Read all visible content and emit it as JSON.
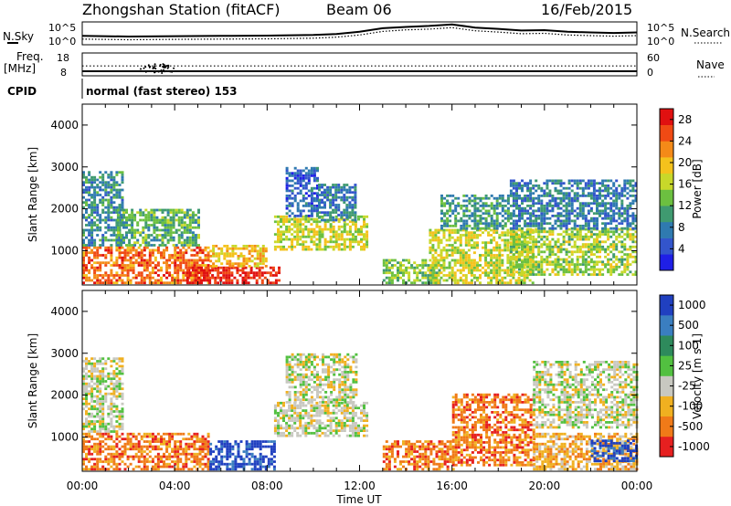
{
  "header": {
    "station": "Zhongshan Station (fitACF)",
    "beam": "Beam 06",
    "date": "16/Feb/2015"
  },
  "noise_panel": {
    "left_label": "N.Sky",
    "right_label": "N.Search",
    "left_ticks": [
      "10^5",
      "10^0"
    ],
    "right_ticks": [
      "10^5",
      "10^0"
    ],
    "series": [
      {
        "style": "solid",
        "name": "N.Sky",
        "x": [
          0,
          2,
          4,
          6,
          8,
          10,
          11,
          12,
          13,
          14,
          15,
          16,
          17,
          18,
          19,
          20,
          21,
          22,
          23,
          24
        ],
        "y": [
          2.2,
          2.0,
          2.1,
          2.2,
          2.3,
          2.5,
          2.8,
          3.5,
          4.6,
          5.0,
          5.3,
          5.8,
          4.8,
          4.4,
          3.9,
          4.0,
          3.5,
          3.3,
          3.1,
          3.3
        ]
      },
      {
        "style": "dotted",
        "name": "N.Search",
        "x": [
          0,
          2,
          4,
          6,
          8,
          10,
          11,
          12,
          13,
          14,
          15,
          16,
          17,
          18,
          19,
          20,
          21,
          22,
          23,
          24
        ],
        "y": [
          1.2,
          1.0,
          1.1,
          1.2,
          1.3,
          1.5,
          1.8,
          2.5,
          3.6,
          4.1,
          4.3,
          4.8,
          3.8,
          3.4,
          2.9,
          3.0,
          2.5,
          2.3,
          2.1,
          2.3
        ]
      }
    ]
  },
  "freq_panel": {
    "left_label": "Freq.",
    "left_unit": "[MHz]",
    "right_label": "Nave",
    "left_ticks": [
      "18",
      "8"
    ],
    "right_ticks": [
      "60",
      "0"
    ],
    "freq_value": 10,
    "nave_value": 26
  },
  "cpid": {
    "label": "CPID",
    "text": "normal (fast stereo) 153"
  },
  "chart_data": [
    {
      "type": "heatmap",
      "parameter": "Power",
      "ylabel": "Slant Range [km]",
      "xlabel": "Time UT",
      "xlim": [
        0,
        24
      ],
      "ylim": [
        180,
        4500
      ],
      "x_ticks": [
        "00:00",
        "04:00",
        "08:00",
        "12:00",
        "16:00",
        "20:00",
        "00:00"
      ],
      "y_ticks": [
        1000,
        2000,
        3000,
        4000
      ],
      "colorbar": {
        "label": "Power [dB]",
        "ticks": [
          4,
          8,
          12,
          16,
          20,
          24,
          28
        ],
        "range": [
          0,
          30
        ],
        "colors": [
          "#1f1fe6",
          "#3355cc",
          "#2f7ab0",
          "#3f9a70",
          "#6cc040",
          "#c8d82a",
          "#f4c21c",
          "#f48a18",
          "#f04a14",
          "#e01010"
        ]
      },
      "regions": [
        {
          "t0": 0.0,
          "t1": 5.5,
          "r0": 200,
          "r1": 1100,
          "level": 24
        },
        {
          "t0": 0.0,
          "t1": 1.8,
          "r0": 1100,
          "r1": 2900,
          "level": 9
        },
        {
          "t0": 1.5,
          "t1": 5.0,
          "r0": 1100,
          "r1": 2000,
          "level": 12
        },
        {
          "t0": 4.5,
          "t1": 8.5,
          "r0": 200,
          "r1": 600,
          "level": 28
        },
        {
          "t0": 5.5,
          "t1": 8.0,
          "r0": 600,
          "r1": 1100,
          "level": 20
        },
        {
          "t0": 8.3,
          "t1": 12.3,
          "r0": 1000,
          "r1": 1800,
          "level": 17
        },
        {
          "t0": 8.8,
          "t1": 10.2,
          "r0": 1800,
          "r1": 3000,
          "level": 6
        },
        {
          "t0": 10.2,
          "t1": 11.8,
          "r0": 1700,
          "r1": 2600,
          "level": 8
        },
        {
          "t0": 13.0,
          "t1": 15.5,
          "r0": 200,
          "r1": 800,
          "level": 14
        },
        {
          "t0": 15.0,
          "t1": 19.5,
          "r0": 200,
          "r1": 1500,
          "level": 17
        },
        {
          "t0": 15.5,
          "t1": 18.5,
          "r0": 1500,
          "r1": 2300,
          "level": 10
        },
        {
          "t0": 18.5,
          "t1": 24.0,
          "r0": 400,
          "r1": 1500,
          "level": 15
        },
        {
          "t0": 18.5,
          "t1": 24.0,
          "r0": 1500,
          "r1": 2700,
          "level": 8
        }
      ]
    },
    {
      "type": "heatmap",
      "parameter": "Velocity",
      "ylabel": "Slant Range [km]",
      "xlabel": "Time UT",
      "xlim": [
        0,
        24
      ],
      "ylim": [
        180,
        4500
      ],
      "x_ticks": [
        "00:00",
        "04:00",
        "08:00",
        "12:00",
        "16:00",
        "20:00",
        "00:00"
      ],
      "y_ticks": [
        1000,
        2000,
        3000,
        4000
      ],
      "colorbar": {
        "label": "Velocity [m s-1]",
        "ticks": [
          "1000",
          "500",
          "100",
          "25",
          "-25",
          "-100",
          "-500",
          "-1000"
        ],
        "colors": [
          "#2040c0",
          "#3a7ec0",
          "#2e8a5c",
          "#52c040",
          "#c8c8c0",
          "#f0b020",
          "#f07a18",
          "#e62020"
        ]
      },
      "regions": [
        {
          "t0": 0.0,
          "t1": 1.8,
          "r0": 1100,
          "r1": 2900,
          "level": 4
        },
        {
          "t0": 0.0,
          "t1": 5.5,
          "r0": 200,
          "r1": 1100,
          "level": 6
        },
        {
          "t0": 5.5,
          "t1": 8.3,
          "r0": 200,
          "r1": 900,
          "level": 0
        },
        {
          "t0": 8.3,
          "t1": 12.3,
          "r0": 1000,
          "r1": 1800,
          "level": 4
        },
        {
          "t0": 8.8,
          "t1": 11.8,
          "r0": 1800,
          "r1": 3000,
          "level": 4
        },
        {
          "t0": 13.0,
          "t1": 16.0,
          "r0": 200,
          "r1": 900,
          "level": 6
        },
        {
          "t0": 16.0,
          "t1": 19.5,
          "r0": 300,
          "r1": 2000,
          "level": 6
        },
        {
          "t0": 19.5,
          "t1": 24.0,
          "r0": 1200,
          "r1": 2800,
          "level": 4
        },
        {
          "t0": 19.5,
          "t1": 24.0,
          "r0": 200,
          "r1": 1100,
          "level": 5
        },
        {
          "t0": 22.0,
          "t1": 24.0,
          "r0": 400,
          "r1": 900,
          "level": 0
        }
      ]
    }
  ]
}
